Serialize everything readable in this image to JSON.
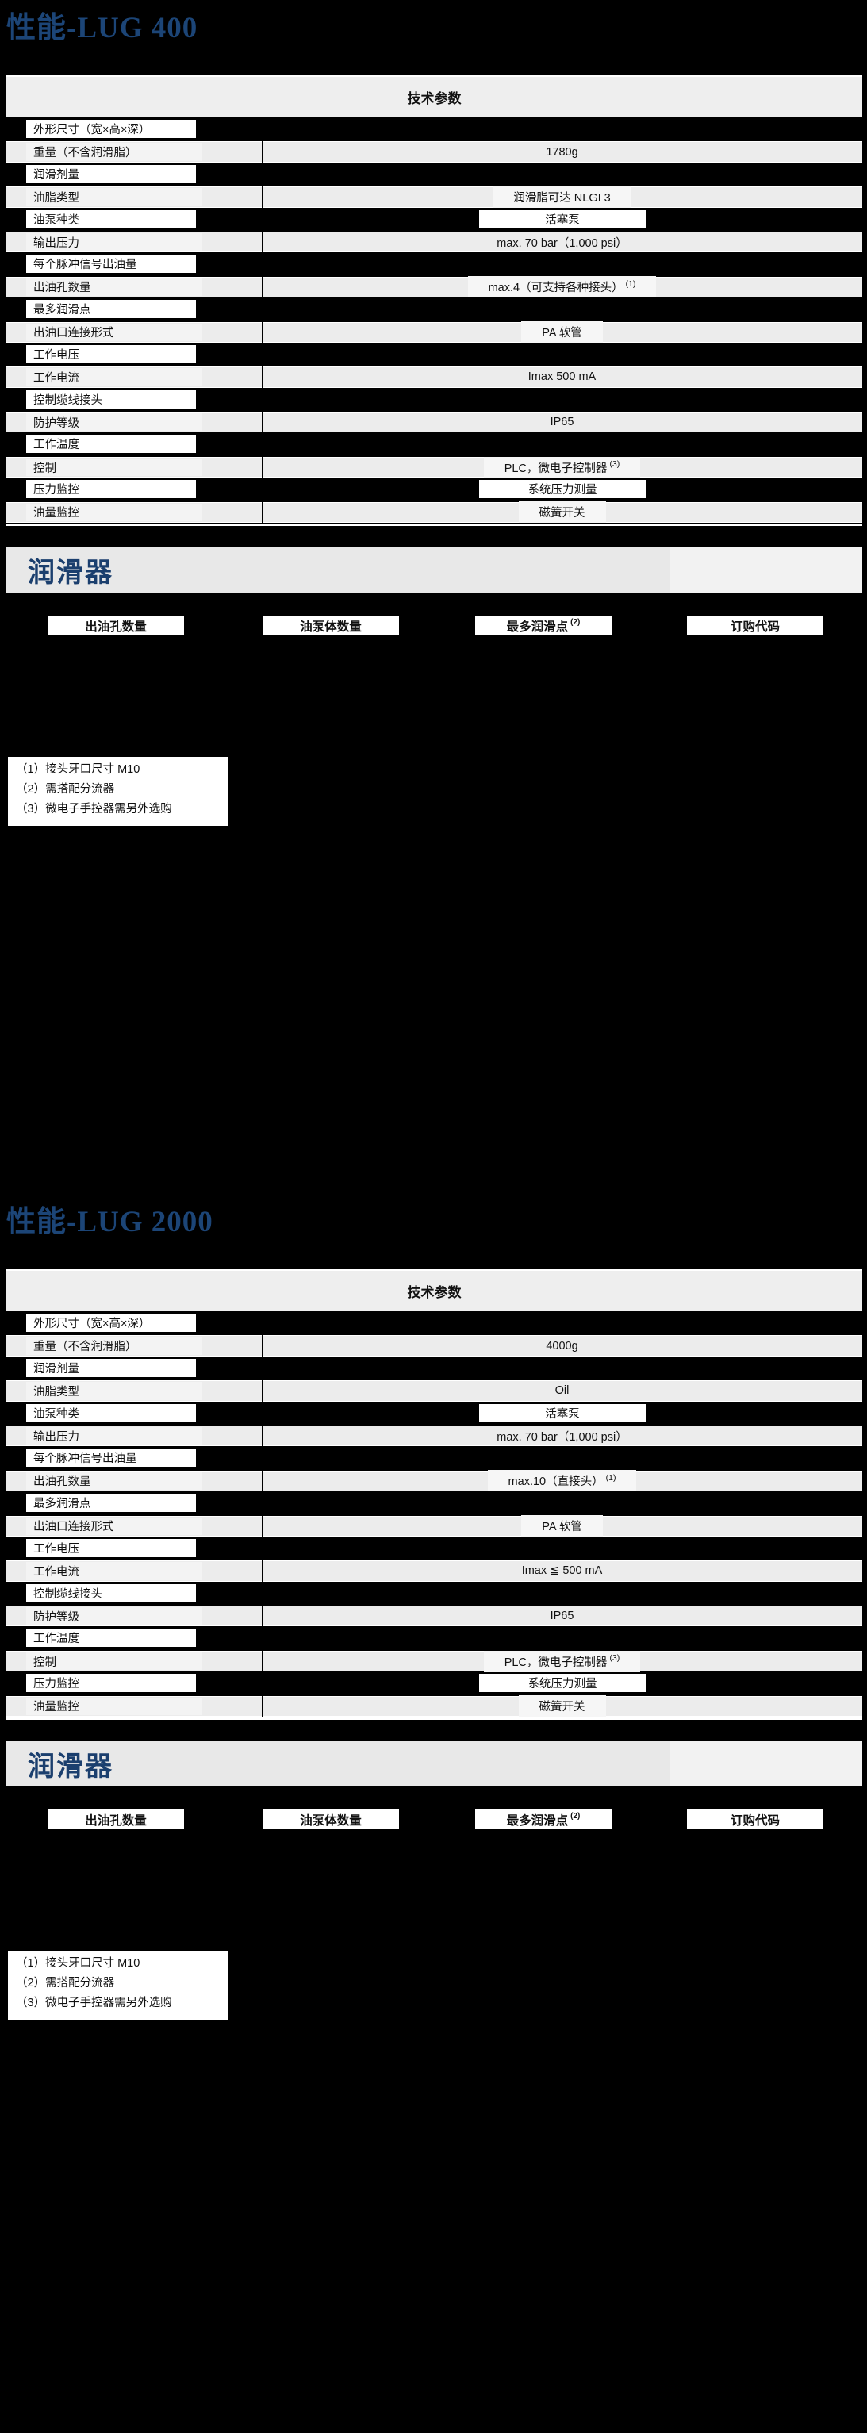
{
  "colors": {
    "page_background": "#000000",
    "title_blue": "#1c4577",
    "heading_blue": "#1b3f6e",
    "table_header_gray": "#eeeeee",
    "row_gray": "#ececec",
    "banner_gray": "#e8e8e8"
  },
  "sections": [
    {
      "title": "性能-LUG 400",
      "table_header": "技术参数",
      "rows": [
        {
          "label": "外形尺寸（宽×高×深）",
          "value": ""
        },
        {
          "label": "重量（不含润滑脂）",
          "value": "1780g"
        },
        {
          "label": "润滑剂量",
          "value": ""
        },
        {
          "label": "油脂类型",
          "value": "润滑脂可达 NLGI 3",
          "patch": true
        },
        {
          "label": "油泵种类",
          "value": "活塞泵"
        },
        {
          "label": "输出压力",
          "value": "max. 70 bar（1,000 psi）"
        },
        {
          "label": "每个脉冲信号出油量",
          "value": ""
        },
        {
          "label": "出油孔数量",
          "value": "max.4（可支持各种接头）",
          "sup": "(1)",
          "patch": true
        },
        {
          "label": "最多润滑点",
          "value": ""
        },
        {
          "label": "出油口连接形式",
          "value": "PA 软管",
          "patch": true
        },
        {
          "label": "工作电压",
          "value": ""
        },
        {
          "label": "工作电流",
          "value": "Imax 500 mA"
        },
        {
          "label": "控制缆线接头",
          "value": ""
        },
        {
          "label": "防护等级",
          "value": "IP65"
        },
        {
          "label": "工作温度",
          "value": ""
        },
        {
          "label": "控制",
          "value": "PLC，微电子控制器",
          "sup": "(3)",
          "patch": true
        },
        {
          "label": "压力监控",
          "value": "系统压力测量"
        },
        {
          "label": "油量监控",
          "value": "磁簧开关",
          "patch": true
        }
      ],
      "lubricator_heading": "润滑器",
      "column_headers": [
        {
          "text": "出油孔数量"
        },
        {
          "text": "油泵体数量"
        },
        {
          "text": "最多润滑点",
          "sup": "(2)"
        },
        {
          "text": "订购代码"
        }
      ],
      "footnotes": [
        "（1）接头牙口尺寸 M10",
        "（2）需搭配分流器",
        "（3）微电子手控器需另外选购"
      ]
    },
    {
      "title": "性能-LUG 2000",
      "table_header": "技术参数",
      "rows": [
        {
          "label": "外形尺寸（宽×高×深）",
          "value": ""
        },
        {
          "label": "重量（不含润滑脂）",
          "value": "4000g"
        },
        {
          "label": "润滑剂量",
          "value": ""
        },
        {
          "label": "油脂类型",
          "value": "Oil"
        },
        {
          "label": "油泵种类",
          "value": "活塞泵"
        },
        {
          "label": "输出压力",
          "value": "max. 70 bar（1,000 psi）"
        },
        {
          "label": "每个脉冲信号出油量",
          "value": ""
        },
        {
          "label": "出油孔数量",
          "value": "max.10（直接头）",
          "sup": "(1)",
          "patch": true
        },
        {
          "label": "最多润滑点",
          "value": ""
        },
        {
          "label": "出油口连接形式",
          "value": "PA 软管",
          "patch": true
        },
        {
          "label": "工作电压",
          "value": ""
        },
        {
          "label": "工作电流",
          "value": "Imax ≦ 500 mA"
        },
        {
          "label": "控制缆线接头",
          "value": ""
        },
        {
          "label": "防护等级",
          "value": "IP65"
        },
        {
          "label": "工作温度",
          "value": ""
        },
        {
          "label": "控制",
          "value": "PLC，微电子控制器",
          "sup": "(3)",
          "patch": true
        },
        {
          "label": "压力监控",
          "value": "系统压力测量"
        },
        {
          "label": "油量监控",
          "value": "磁簧开关",
          "patch": true
        }
      ],
      "lubricator_heading": "润滑器",
      "column_headers": [
        {
          "text": "出油孔数量"
        },
        {
          "text": "油泵体数量"
        },
        {
          "text": "最多润滑点",
          "sup": "(2)"
        },
        {
          "text": "订购代码"
        }
      ],
      "footnotes": [
        "（1）接头牙口尺寸 M10",
        "（2）需搭配分流器",
        "（3）微电子手控器需另外选购"
      ]
    }
  ]
}
